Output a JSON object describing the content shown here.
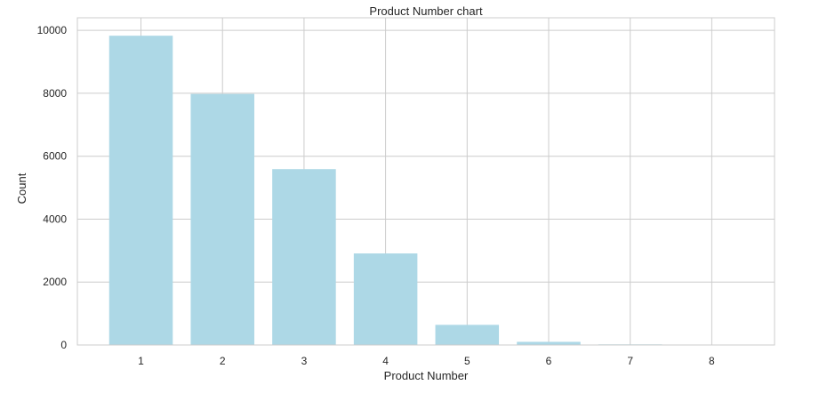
{
  "chart_data": {
    "type": "bar",
    "title": "Product Number chart",
    "xlabel": "Product Number",
    "ylabel": "Count",
    "categories": [
      "1",
      "2",
      "3",
      "4",
      "5",
      "6",
      "7",
      "8"
    ],
    "values": [
      9830,
      7980,
      5590,
      2910,
      640,
      100,
      20,
      10
    ],
    "ylim": [
      0,
      10400
    ],
    "yticks": [
      "0",
      "2000",
      "4000",
      "6000",
      "8000",
      "10000"
    ],
    "ytick_values": [
      0,
      2000,
      4000,
      6000,
      8000,
      10000
    ],
    "grid": true,
    "bar_color": "#add8e6",
    "grid_color": "#cccccc"
  }
}
